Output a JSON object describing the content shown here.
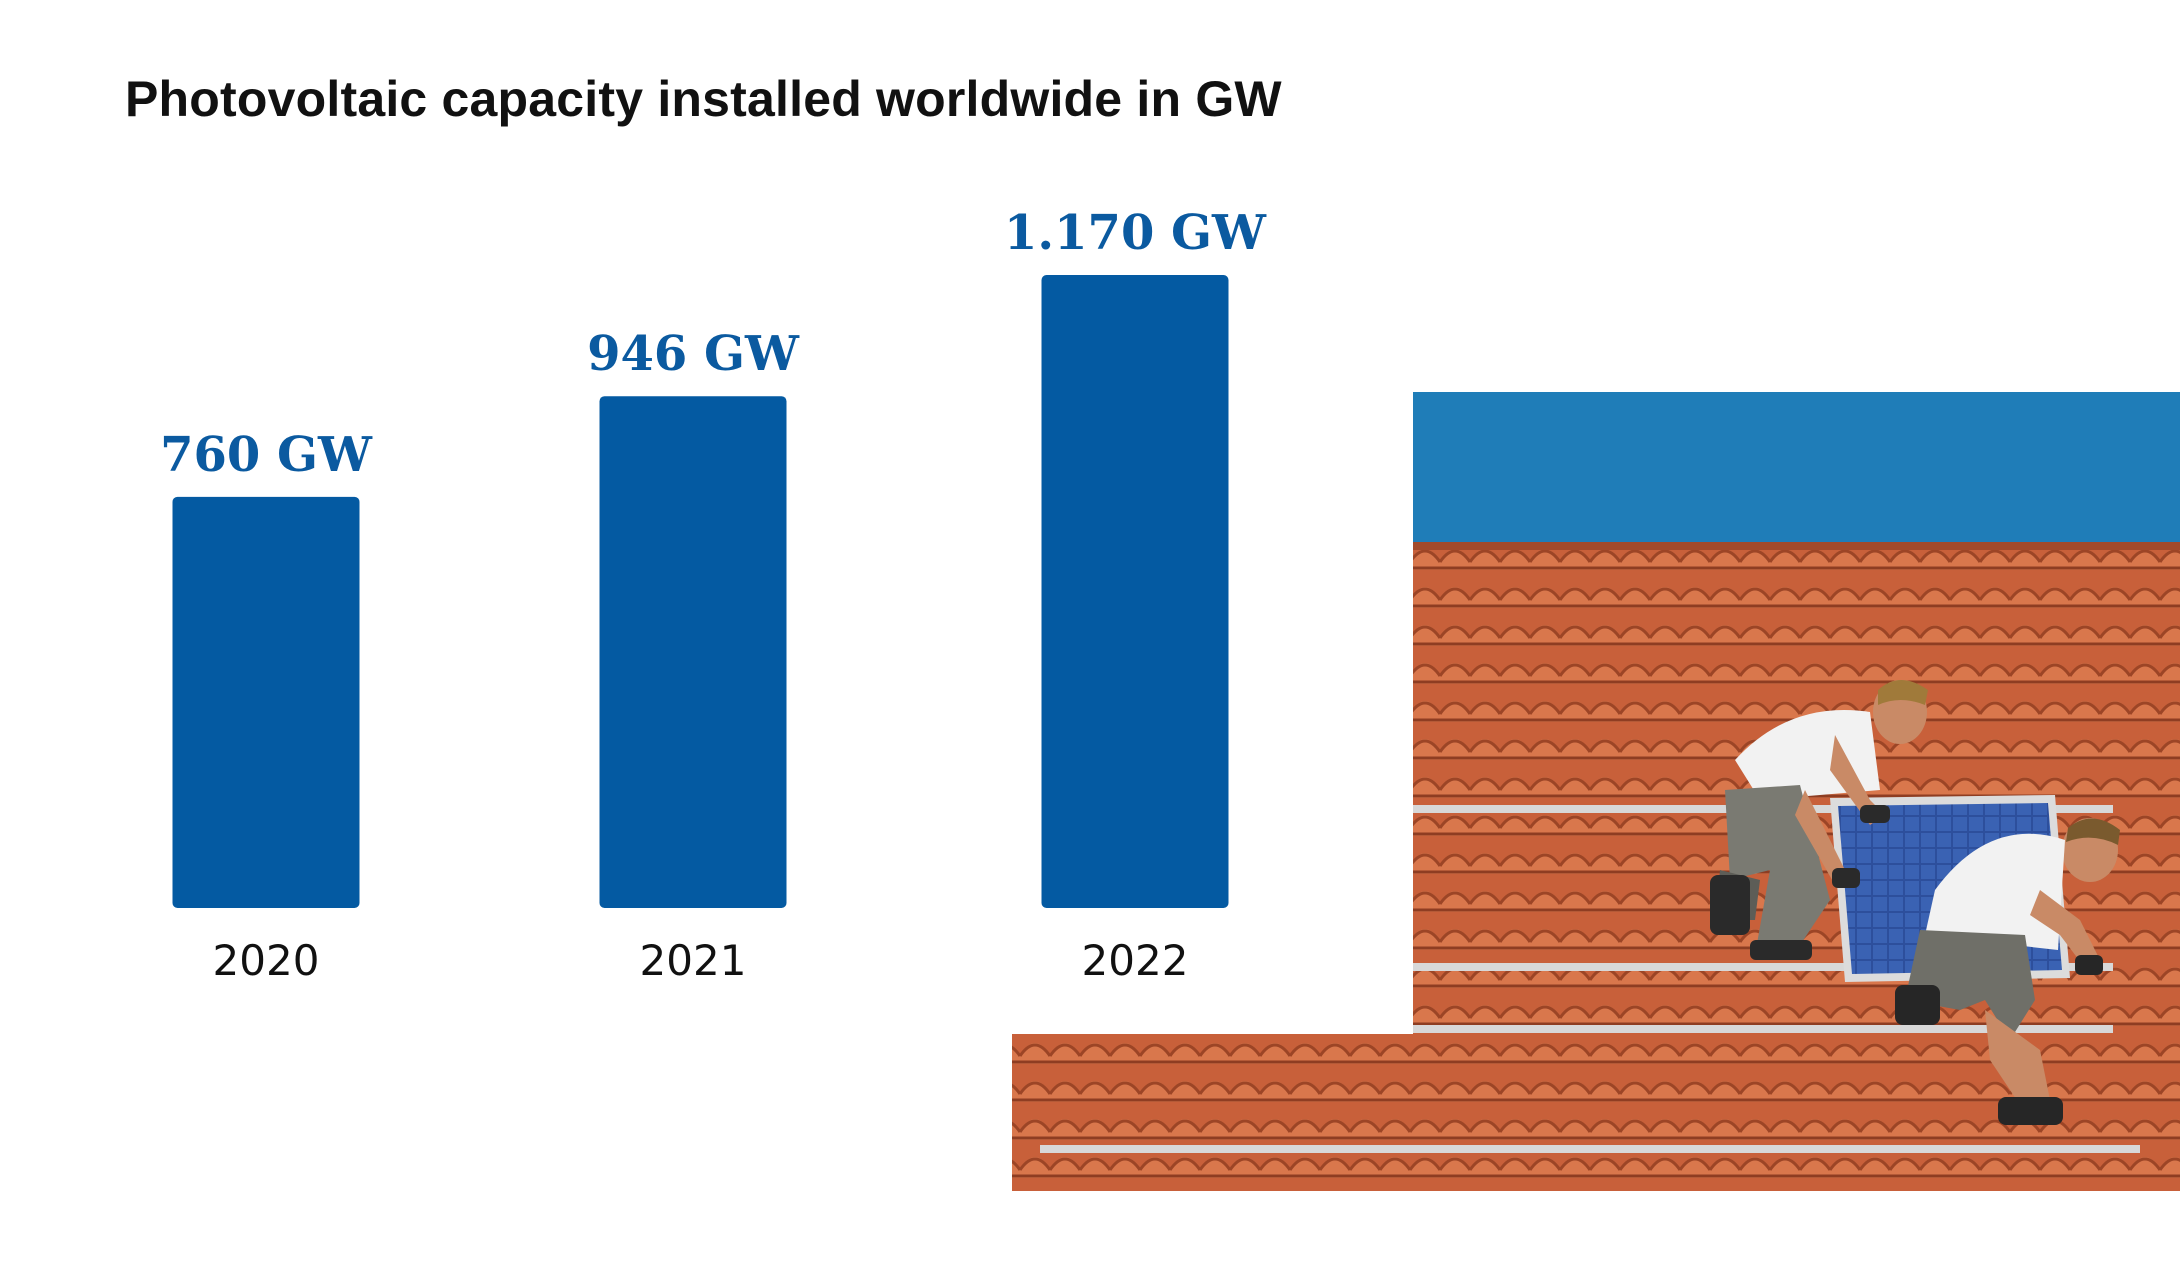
{
  "chart_data": {
    "type": "bar",
    "title": "Photovoltaic capacity installed worldwide in GW",
    "categories": [
      "2020",
      "2021",
      "2022"
    ],
    "values": [
      760,
      946,
      1170
    ],
    "value_labels": [
      "760 GW",
      "946 GW",
      "1.170 GW"
    ],
    "unit": "GW",
    "xlabel": "",
    "ylabel": "",
    "ylim": [
      0,
      1170
    ],
    "grid": false,
    "bar_color": "#045aa2"
  },
  "photo": {
    "description_icon": "roof-solar-installation-photo",
    "sky_color": "#1f7db8",
    "tile_color": "#c9623c",
    "panel_color": "#2b4e9a"
  }
}
